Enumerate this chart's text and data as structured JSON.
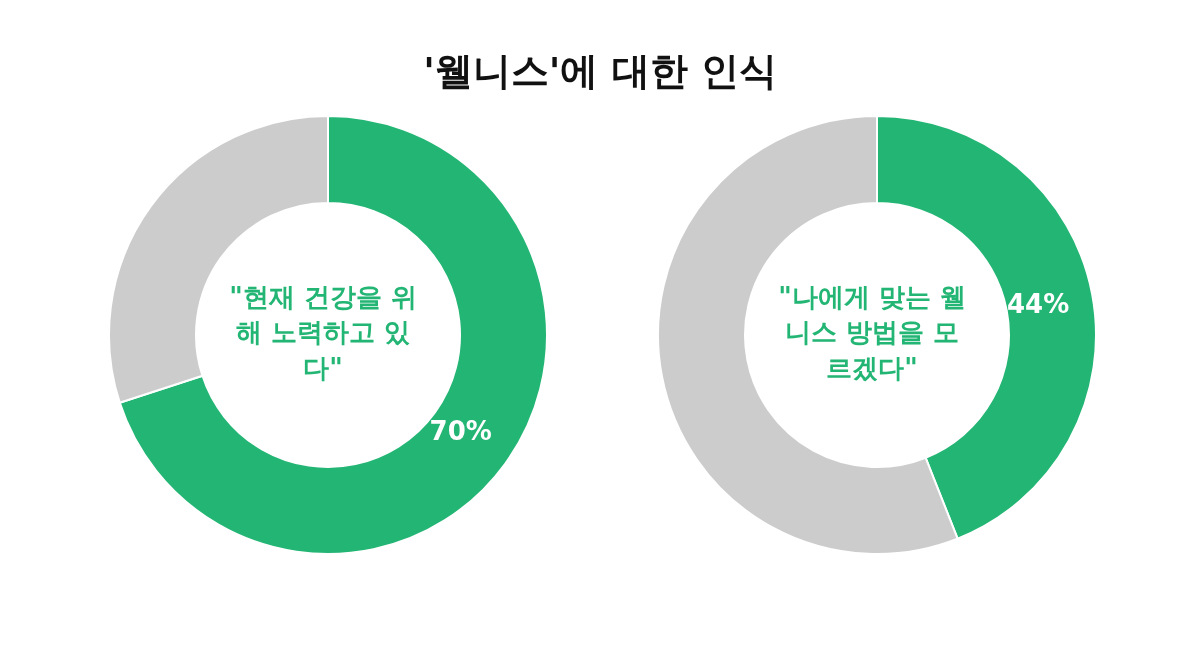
{
  "chart_data": [
    {
      "type": "donut",
      "title": "'웰니스'에 대한 인식",
      "categories": [
        null,
        null
      ],
      "values": [
        70,
        30
      ],
      "colors": [
        "#23b574",
        "#cccccc"
      ],
      "value_labels": [
        "70%",
        null
      ],
      "annotations": [
        "\"현재 건강을 위해 노력하고 있다\""
      ]
    },
    {
      "type": "donut",
      "categories": [
        null,
        null
      ],
      "values": [
        44,
        56
      ],
      "colors": [
        "#23b574",
        "#cccccc"
      ],
      "value_labels": [
        "44%",
        null
      ],
      "annotations": [
        "\"나에게 맞는 웰니스 방법을 모르겠다\""
      ]
    }
  ]
}
